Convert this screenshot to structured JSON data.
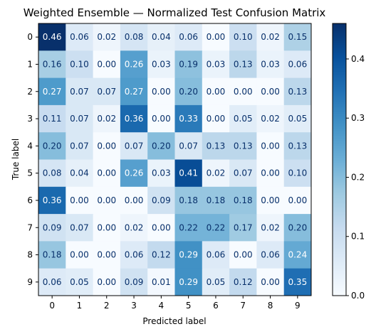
{
  "chart_data": {
    "type": "heatmap",
    "title": "Weighted Ensemble — Normalized Test Confusion Matrix",
    "xlabel": "Predicted label",
    "ylabel": "True label",
    "x_categories": [
      "0",
      "1",
      "2",
      "3",
      "4",
      "5",
      "6",
      "7",
      "8",
      "9"
    ],
    "y_categories": [
      "0",
      "1",
      "2",
      "3",
      "4",
      "5",
      "6",
      "7",
      "8",
      "9"
    ],
    "values": [
      [
        0.46,
        0.06,
        0.02,
        0.08,
        0.04,
        0.06,
        0.0,
        0.1,
        0.02,
        0.15
      ],
      [
        0.16,
        0.1,
        0.0,
        0.26,
        0.03,
        0.19,
        0.03,
        0.13,
        0.03,
        0.06
      ],
      [
        0.27,
        0.07,
        0.07,
        0.27,
        0.0,
        0.2,
        0.0,
        0.0,
        0.0,
        0.13
      ],
      [
        0.11,
        0.07,
        0.02,
        0.36,
        0.0,
        0.33,
        0.0,
        0.05,
        0.02,
        0.05
      ],
      [
        0.2,
        0.07,
        0.0,
        0.07,
        0.2,
        0.07,
        0.13,
        0.13,
        0.0,
        0.13
      ],
      [
        0.08,
        0.04,
        0.0,
        0.26,
        0.03,
        0.41,
        0.02,
        0.07,
        0.0,
        0.1
      ],
      [
        0.36,
        0.0,
        0.0,
        0.0,
        0.09,
        0.18,
        0.18,
        0.18,
        0.0,
        0.0
      ],
      [
        0.09,
        0.07,
        0.0,
        0.02,
        0.0,
        0.22,
        0.22,
        0.17,
        0.02,
        0.2
      ],
      [
        0.18,
        0.0,
        0.0,
        0.06,
        0.12,
        0.29,
        0.06,
        0.0,
        0.06,
        0.24
      ],
      [
        0.06,
        0.05,
        0.0,
        0.09,
        0.01,
        0.29,
        0.05,
        0.12,
        0.0,
        0.35
      ]
    ],
    "value_format": "0.00",
    "colormap": "Blues",
    "colorbar": {
      "range": [
        0.0,
        0.46
      ],
      "ticks": [
        0.0,
        0.1,
        0.2,
        0.3,
        0.4
      ],
      "tick_labels": [
        "0.0",
        "0.1",
        "0.2",
        "0.3",
        "0.4"
      ]
    },
    "grid": false
  }
}
